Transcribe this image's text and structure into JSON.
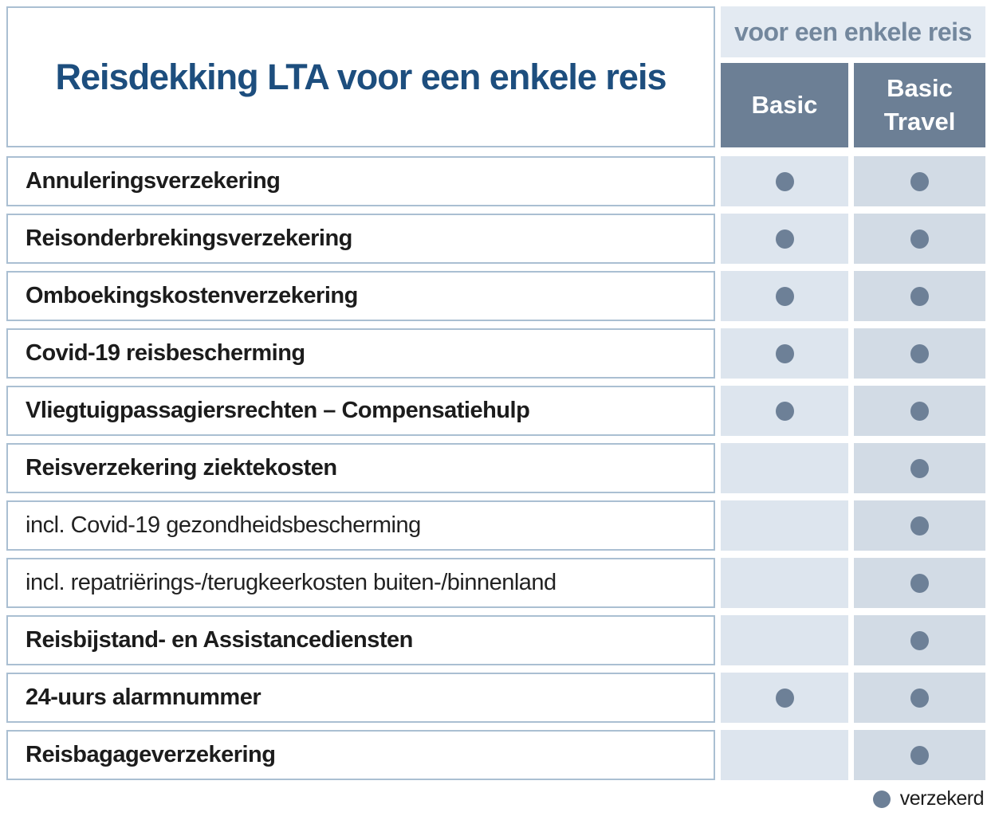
{
  "title": "Reisdekking LTA voor een enkele reis",
  "group_header": "voor een enkele reis",
  "columns": [
    "Basic",
    "Basic Travel"
  ],
  "legend_label": "verzekerd",
  "legend_symbol": "filled-dot",
  "colors": {
    "title_text": "#1d4e7e",
    "group_band_bg": "#e3eaf2",
    "group_band_text": "#73879d",
    "column_header_bg": "#6c7f95",
    "column_header_text": "#ffffff",
    "basic_cell_bg": "#dde5ee",
    "basic_travel_cell_bg": "#d2dbe5",
    "dot": "#6d8097",
    "row_border": "#aabfd2",
    "row_label_text": "#1c1c1c"
  },
  "rows": [
    {
      "label": "Annuleringsverzekering",
      "emphasis": "bold",
      "basic": true,
      "basic_travel": true
    },
    {
      "label": "Reisonderbrekingsverzekering",
      "emphasis": "bold",
      "basic": true,
      "basic_travel": true
    },
    {
      "label": "Omboekingskostenverzekering",
      "emphasis": "bold",
      "basic": true,
      "basic_travel": true
    },
    {
      "label": "Covid-19 reisbescherming",
      "emphasis": "bold",
      "basic": true,
      "basic_travel": true
    },
    {
      "label": "Vliegtuigpassagiersrechten – Compensatiehulp",
      "emphasis": "bold",
      "basic": true,
      "basic_travel": true
    },
    {
      "label": "Reisverzekering ziektekosten",
      "emphasis": "bold",
      "basic": false,
      "basic_travel": true
    },
    {
      "label": "incl. Covid-19 gezondheidsbescherming",
      "emphasis": "normal",
      "basic": false,
      "basic_travel": true
    },
    {
      "label": "incl. repatriërings-/terugkeerkosten buiten-/binnenland",
      "emphasis": "normal",
      "basic": false,
      "basic_travel": true
    },
    {
      "label": "Reisbijstand- en Assistancediensten",
      "emphasis": "bold",
      "basic": false,
      "basic_travel": true
    },
    {
      "label": "24-uurs alarmnummer",
      "emphasis": "bold",
      "basic": true,
      "basic_travel": true
    },
    {
      "label": "Reisbagageverzekering",
      "emphasis": "bold",
      "basic": false,
      "basic_travel": true
    }
  ]
}
